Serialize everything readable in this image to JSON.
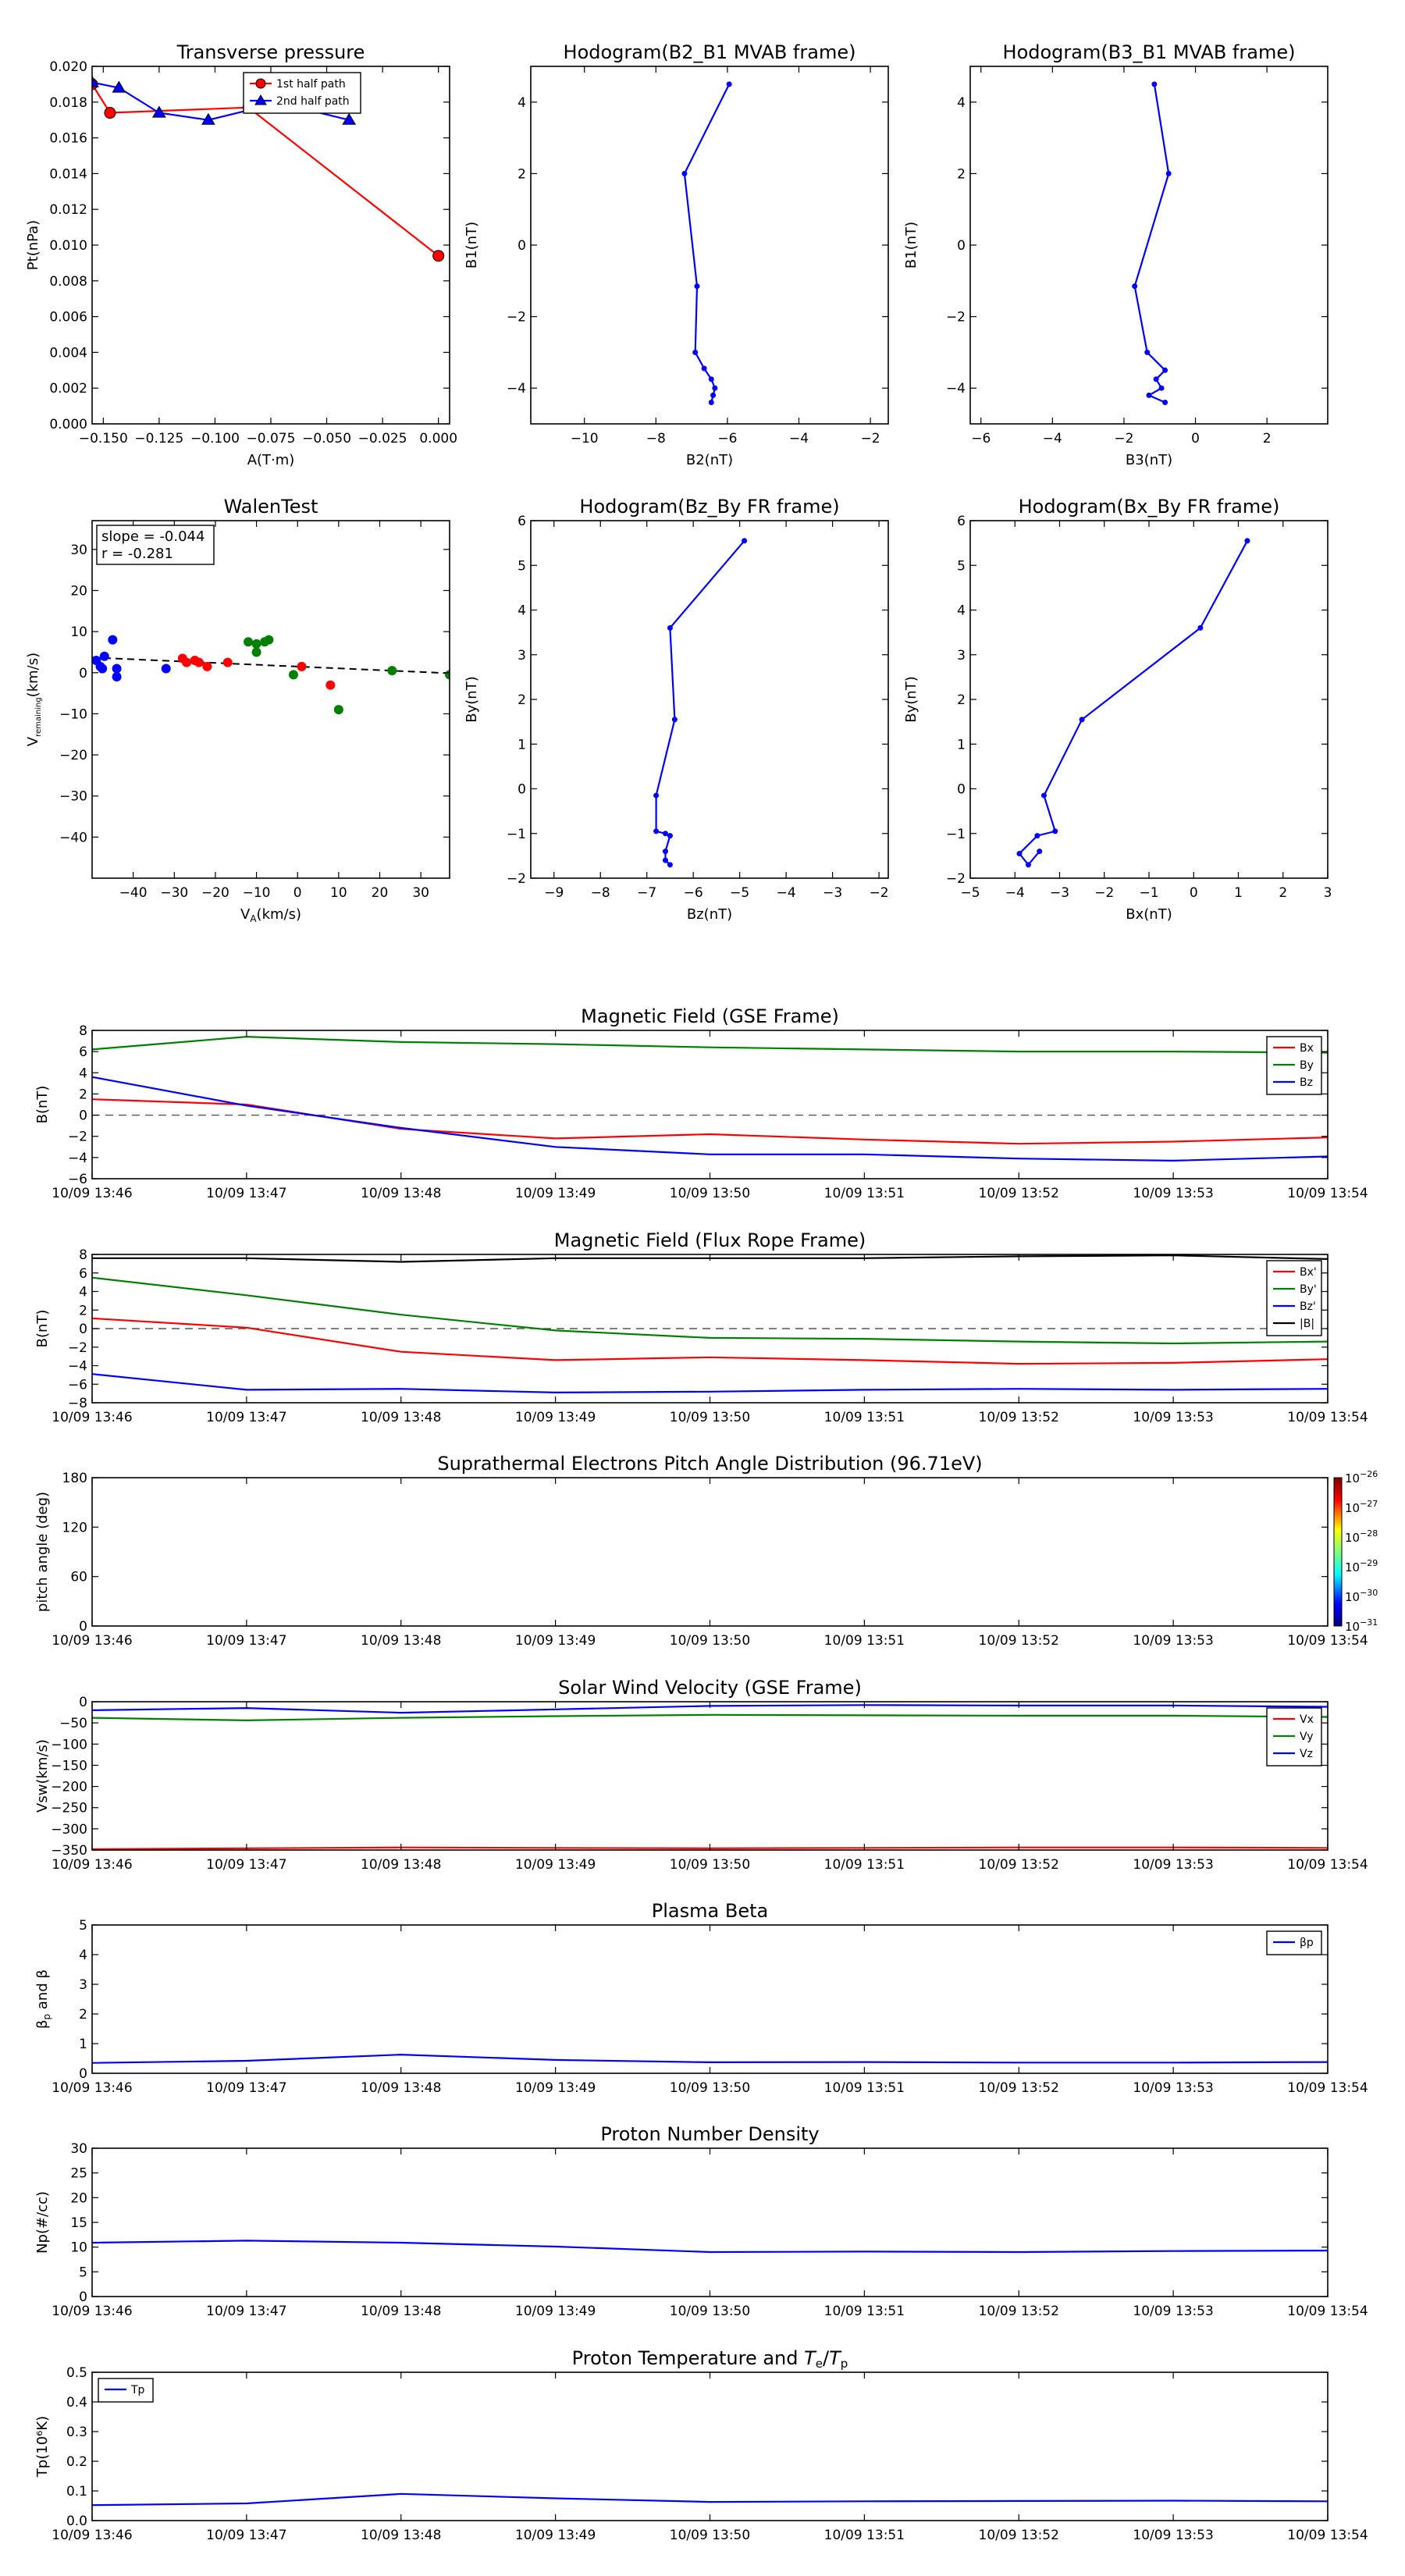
{
  "time_labels": [
    "10/09 13:46",
    "10/09 13:47",
    "10/09 13:48",
    "10/09 13:49",
    "10/09 13:50",
    "10/09 13:51",
    "10/09 13:52",
    "10/09 13:53",
    "10/09 13:54"
  ],
  "colors": {
    "red": "#ff0000",
    "green": "#008000",
    "blue": "#0000ff",
    "black": "#000000"
  },
  "chart_data": [
    {
      "id": "transverse-pressure",
      "type": "line",
      "title": "Transverse pressure",
      "xlabel": "A(T·m)",
      "ylabel": "Pt(nPa)",
      "xlim": [
        -0.155,
        0.005
      ],
      "ylim": [
        0,
        0.02
      ],
      "xticks": [
        -0.15,
        -0.125,
        -0.1,
        -0.075,
        -0.05,
        -0.025,
        0.0
      ],
      "xtick_labels": [
        "−0.150",
        "−0.125",
        "−0.100",
        "−0.075",
        "−0.050",
        "−0.025",
        "0.000"
      ],
      "yticks": [
        0,
        0.002,
        0.004,
        0.006,
        0.008,
        0.01,
        0.012,
        0.014,
        0.016,
        0.018,
        0.02
      ],
      "ytick_labels": [
        "0.000",
        "0.002",
        "0.004",
        "0.006",
        "0.008",
        "0.010",
        "0.012",
        "0.014",
        "0.016",
        "0.018",
        "0.020"
      ],
      "legend": "top-center",
      "series": [
        {
          "name": "1st half path",
          "color": "#ff0000",
          "marker": "circle",
          "x": [
            -0.155,
            -0.147,
            -0.085,
            0.0
          ],
          "y": [
            0.019,
            0.0174,
            0.0177,
            0.0094
          ]
        },
        {
          "name": "2nd half path",
          "color": "#0000ff",
          "marker": "triangle",
          "x": [
            -0.155,
            -0.143,
            -0.125,
            -0.103,
            -0.08,
            -0.063,
            -0.04
          ],
          "y": [
            0.0191,
            0.0188,
            0.0174,
            0.017,
            0.0177,
            0.0177,
            0.017
          ]
        }
      ]
    },
    {
      "id": "hodogram-b2-b1",
      "type": "line",
      "title": "Hodogram(B2_B1 MVAB frame)",
      "xlabel": "B2(nT)",
      "ylabel": "B1(nT)",
      "xlim": [
        -11.5,
        -1.5
      ],
      "ylim": [
        -5,
        5
      ],
      "xticks": [
        -10,
        -8,
        -6,
        -4,
        -2
      ],
      "xtick_labels": [
        "−10",
        "−8",
        "−6",
        "−4",
        "−2"
      ],
      "yticks": [
        -4,
        -2,
        0,
        2,
        4
      ],
      "ytick_labels": [
        "−4",
        "−2",
        "0",
        "2",
        "4"
      ],
      "series": [
        {
          "color": "#0000ff",
          "marker": "dot",
          "x": [
            -5.95,
            -7.2,
            -6.85,
            -6.9,
            -6.65,
            -6.45,
            -6.35,
            -6.4,
            -6.45
          ],
          "y": [
            4.5,
            2.0,
            -1.15,
            -3.0,
            -3.45,
            -3.75,
            -4.0,
            -4.2,
            -4.4
          ]
        }
      ]
    },
    {
      "id": "hodogram-b3-b1",
      "type": "line",
      "title": "Hodogram(B3_B1 MVAB frame)",
      "xlabel": "B3(nT)",
      "ylabel": "B1(nT)",
      "xlim": [
        -6.3,
        3.7
      ],
      "ylim": [
        -5,
        5
      ],
      "xticks": [
        -6,
        -4,
        -2,
        0,
        2
      ],
      "xtick_labels": [
        "−6",
        "−4",
        "−2",
        "0",
        "2"
      ],
      "yticks": [
        -4,
        -2,
        0,
        2,
        4
      ],
      "ytick_labels": [
        "−4",
        "−2",
        "0",
        "2",
        "4"
      ],
      "series": [
        {
          "color": "#0000ff",
          "marker": "dot",
          "x": [
            -1.15,
            -0.75,
            -1.7,
            -1.35,
            -0.85,
            -1.1,
            -0.95,
            -1.3,
            -0.85
          ],
          "y": [
            4.5,
            2.0,
            -1.15,
            -3.0,
            -3.5,
            -3.75,
            -4.0,
            -4.2,
            -4.4
          ]
        }
      ]
    },
    {
      "id": "walen-test",
      "type": "scatter",
      "title": "WalenTest",
      "xlabel": "V_A(km/s)",
      "ylabel": "V_remaining(km/s)",
      "xlim": [
        -50,
        37
      ],
      "ylim": [
        -50,
        37
      ],
      "xticks": [
        -40,
        -30,
        -20,
        -10,
        0,
        10,
        20,
        30
      ],
      "xtick_labels": [
        "−40",
        "−30",
        "−20",
        "−10",
        "0",
        "10",
        "20",
        "30"
      ],
      "yticks": [
        -40,
        -30,
        -20,
        -10,
        0,
        10,
        20,
        30
      ],
      "ytick_labels": [
        "−40",
        "−30",
        "−20",
        "−10",
        "0",
        "10",
        "20",
        "30"
      ],
      "annotation": [
        "slope = -0.044",
        "r = -0.281"
      ],
      "fit": {
        "slope": -0.044,
        "intercept": 1.5,
        "color": "#000000"
      },
      "series": [
        {
          "color": "#0000ff",
          "x": [
            -49,
            -48,
            -47.5,
            -47,
            -45,
            -44,
            -44,
            -32
          ],
          "y": [
            3,
            1.5,
            1,
            4,
            8,
            -1,
            1,
            1
          ]
        },
        {
          "color": "#ff0000",
          "x": [
            -28,
            -27,
            -25,
            -24,
            -22,
            -17,
            1,
            8
          ],
          "y": [
            3.5,
            2.5,
            3,
            2.5,
            1.5,
            2.5,
            1.5,
            -3
          ]
        },
        {
          "color": "#008000",
          "x": [
            -12,
            -10,
            -10,
            -8,
            -7,
            -1,
            10,
            23,
            37
          ],
          "y": [
            7.5,
            7,
            5,
            7.5,
            8,
            -0.5,
            -9,
            0.5,
            -0.5
          ]
        }
      ]
    },
    {
      "id": "hodogram-bz-by",
      "type": "line",
      "title": "Hodogram(Bz_By FR frame)",
      "xlabel": "Bz(nT)",
      "ylabel": "By(nT)",
      "xlim": [
        -9.5,
        -1.8
      ],
      "ylim": [
        -2,
        6
      ],
      "xticks": [
        -9,
        -8,
        -7,
        -6,
        -5,
        -4,
        -3,
        -2
      ],
      "xtick_labels": [
        "−9",
        "−8",
        "−7",
        "−6",
        "−5",
        "−4",
        "−3",
        "−2"
      ],
      "yticks": [
        -2,
        -1,
        0,
        1,
        2,
        3,
        4,
        5,
        6
      ],
      "ytick_labels": [
        "−2",
        "−1",
        "0",
        "1",
        "2",
        "3",
        "4",
        "5",
        "6"
      ],
      "series": [
        {
          "color": "#0000ff",
          "marker": "dot",
          "x": [
            -4.9,
            -6.5,
            -6.4,
            -6.8,
            -6.8,
            -6.6,
            -6.5,
            -6.6,
            -6.6,
            -6.5
          ],
          "y": [
            5.55,
            3.6,
            1.55,
            -0.15,
            -0.95,
            -1.0,
            -1.05,
            -1.4,
            -1.6,
            -1.7
          ]
        }
      ]
    },
    {
      "id": "hodogram-bx-by",
      "type": "line",
      "title": "Hodogram(Bx_By FR frame)",
      "xlabel": "Bx(nT)",
      "ylabel": "By(nT)",
      "xlim": [
        -5,
        3
      ],
      "ylim": [
        -2,
        6
      ],
      "xticks": [
        -5,
        -4,
        -3,
        -2,
        -1,
        0,
        1,
        2,
        3
      ],
      "xtick_labels": [
        "−5",
        "−4",
        "−3",
        "−2",
        "−1",
        "0",
        "1",
        "2",
        "3"
      ],
      "yticks": [
        -2,
        -1,
        0,
        1,
        2,
        3,
        4,
        5,
        6
      ],
      "ytick_labels": [
        "−2",
        "−1",
        "0",
        "1",
        "2",
        "3",
        "4",
        "5",
        "6"
      ],
      "series": [
        {
          "color": "#0000ff",
          "marker": "dot",
          "x": [
            1.2,
            0.15,
            -2.5,
            -3.35,
            -3.1,
            -3.5,
            -3.9,
            -3.7,
            -3.45
          ],
          "y": [
            5.55,
            3.6,
            1.55,
            -0.15,
            -0.95,
            -1.05,
            -1.45,
            -1.7,
            -1.4
          ]
        }
      ]
    },
    {
      "id": "magnetic-field-gse",
      "type": "line",
      "title": "Magnetic Field (GSE Frame)",
      "xlabel": "",
      "ylabel": "B(nT)",
      "xlim": [
        0,
        8
      ],
      "ylim": [
        -6,
        8
      ],
      "yticks": [
        -6,
        -4,
        -2,
        0,
        2,
        4,
        6,
        8
      ],
      "ytick_labels": [
        "−6",
        "−4",
        "−2",
        "0",
        "2",
        "4",
        "6",
        "8"
      ],
      "show_time_labels": true,
      "zero_line": true,
      "legend": "top-right",
      "series": [
        {
          "name": "Bx",
          "color": "#ff0000",
          "x": [
            0,
            1,
            2,
            3,
            4,
            5,
            6,
            7,
            8
          ],
          "y": [
            1.5,
            1.0,
            -1.3,
            -2.2,
            -1.8,
            -2.3,
            -2.7,
            -2.5,
            -2.1
          ]
        },
        {
          "name": "By",
          "color": "#008000",
          "x": [
            0,
            1,
            2,
            3,
            4,
            5,
            6,
            7,
            8
          ],
          "y": [
            6.2,
            7.4,
            6.9,
            6.7,
            6.4,
            6.2,
            6.0,
            6.0,
            5.9
          ]
        },
        {
          "name": "Bz",
          "color": "#0000ff",
          "x": [
            0,
            1,
            2,
            3,
            4,
            5,
            6,
            7,
            8
          ],
          "y": [
            3.6,
            0.9,
            -1.2,
            -3.0,
            -3.7,
            -3.7,
            -4.1,
            -4.3,
            -3.9
          ]
        }
      ]
    },
    {
      "id": "magnetic-field-fr",
      "type": "line",
      "title": "Magnetic Field (Flux Rope Frame)",
      "xlabel": "",
      "ylabel": "B(nT)",
      "xlim": [
        0,
        8
      ],
      "ylim": [
        -8,
        8
      ],
      "yticks": [
        -8,
        -6,
        -4,
        -2,
        0,
        2,
        4,
        6,
        8
      ],
      "ytick_labels": [
        "−8",
        "−6",
        "−4",
        "−2",
        "0",
        "2",
        "4",
        "6",
        "8"
      ],
      "show_time_labels": true,
      "zero_line": true,
      "legend": "top-right",
      "series": [
        {
          "name": "Bx'",
          "color": "#ff0000",
          "x": [
            0,
            1,
            2,
            3,
            4,
            5,
            6,
            7,
            8
          ],
          "y": [
            1.1,
            0.1,
            -2.5,
            -3.4,
            -3.1,
            -3.4,
            -3.8,
            -3.7,
            -3.3
          ]
        },
        {
          "name": "By'",
          "color": "#008000",
          "x": [
            0,
            1,
            2,
            3,
            4,
            5,
            6,
            7,
            8
          ],
          "y": [
            5.5,
            3.6,
            1.5,
            -0.2,
            -1.0,
            -1.1,
            -1.4,
            -1.6,
            -1.4
          ]
        },
        {
          "name": "Bz'",
          "color": "#0000ff",
          "x": [
            0,
            1,
            2,
            3,
            4,
            5,
            6,
            7,
            8
          ],
          "y": [
            -4.9,
            -6.6,
            -6.5,
            -6.9,
            -6.8,
            -6.6,
            -6.5,
            -6.6,
            -6.5
          ]
        },
        {
          "name": "|B|",
          "color": "#000000",
          "x": [
            0,
            1,
            2,
            3,
            4,
            5,
            6,
            7,
            8
          ],
          "y": [
            7.6,
            7.6,
            7.2,
            7.6,
            7.6,
            7.6,
            7.8,
            7.9,
            7.5
          ]
        }
      ]
    },
    {
      "id": "pitch-angle-distribution",
      "type": "heatmap",
      "title": "Suprathermal Electrons Pitch Angle Distribution (96.71eV)",
      "xlabel": "",
      "ylabel": "pitch angle (deg)",
      "xlim": [
        0,
        8
      ],
      "ylim": [
        0,
        180
      ],
      "yticks": [
        0,
        60,
        120,
        180
      ],
      "ytick_labels": [
        "0",
        "60",
        "120",
        "180"
      ],
      "show_time_labels": true,
      "colorbar": {
        "ticks": [
          -26,
          -27,
          -28,
          -29,
          -30,
          -31
        ],
        "labels": [
          "10",
          "10",
          "10",
          "10",
          "10",
          "10"
        ],
        "exponents": [
          "−26",
          "−27",
          "−28",
          "−29",
          "−30",
          "−31"
        ]
      }
    },
    {
      "id": "solar-wind-velocity",
      "type": "line",
      "title": "Solar Wind Velocity (GSE Frame)",
      "xlabel": "",
      "ylabel": "Vsw(km/s)",
      "xlim": [
        0,
        8
      ],
      "ylim": [
        -350,
        0
      ],
      "yticks": [
        -350,
        -300,
        -250,
        -200,
        -150,
        -100,
        -50,
        0
      ],
      "ytick_labels": [
        "−350",
        "−300",
        "−250",
        "−200",
        "−150",
        "−100",
        "−50",
        "0"
      ],
      "show_time_labels": true,
      "legend": "top-right",
      "series": [
        {
          "name": "Vx",
          "color": "#ff0000",
          "x": [
            0,
            1,
            2,
            3,
            4,
            5,
            6,
            7,
            8
          ],
          "y": [
            -348,
            -346,
            -344,
            -345,
            -346,
            -345,
            -344,
            -344,
            -345
          ]
        },
        {
          "name": "Vy",
          "color": "#008000",
          "x": [
            0,
            1,
            2,
            3,
            4,
            5,
            6,
            7,
            8
          ],
          "y": [
            -38,
            -44,
            -38,
            -34,
            -31,
            -32,
            -33,
            -33,
            -36
          ]
        },
        {
          "name": "Vz",
          "color": "#0000ff",
          "x": [
            0,
            1,
            2,
            3,
            4,
            5,
            6,
            7,
            8
          ],
          "y": [
            -20,
            -15,
            -26,
            -18,
            -10,
            -8,
            -9,
            -9,
            -12
          ]
        }
      ]
    },
    {
      "id": "plasma-beta",
      "type": "line",
      "title": "Plasma Beta",
      "xlabel": "",
      "ylabel": "βp and β",
      "xlim": [
        0,
        8
      ],
      "ylim": [
        0,
        5
      ],
      "yticks": [
        0,
        1,
        2,
        3,
        4,
        5
      ],
      "ytick_labels": [
        "0",
        "1",
        "2",
        "3",
        "4",
        "5"
      ],
      "show_time_labels": true,
      "legend": "top-right",
      "series": [
        {
          "name": "βp",
          "color": "#0000ff",
          "x": [
            0,
            1,
            2,
            3,
            4,
            5,
            6,
            7,
            8
          ],
          "y": [
            0.35,
            0.42,
            0.63,
            0.45,
            0.37,
            0.38,
            0.36,
            0.36,
            0.38
          ]
        }
      ]
    },
    {
      "id": "proton-number-density",
      "type": "line",
      "title": "Proton Number Density",
      "xlabel": "",
      "ylabel": "Np(#/cc)",
      "xlim": [
        0,
        8
      ],
      "ylim": [
        0,
        30
      ],
      "yticks": [
        0,
        5,
        10,
        15,
        20,
        25,
        30
      ],
      "ytick_labels": [
        "0",
        "5",
        "10",
        "15",
        "20",
        "25",
        "30"
      ],
      "show_time_labels": true,
      "series": [
        {
          "color": "#0000ff",
          "x": [
            0,
            1,
            2,
            3,
            4,
            5,
            6,
            7,
            8
          ],
          "y": [
            10.9,
            11.3,
            10.9,
            10.1,
            9.0,
            9.1,
            9.0,
            9.2,
            9.3
          ]
        }
      ]
    },
    {
      "id": "proton-temperature",
      "type": "line",
      "title": "Proton Temperature and Te/Tp",
      "xlabel": "",
      "ylabel": "Tp(10⁶K)",
      "xlim": [
        0,
        8
      ],
      "ylim": [
        0,
        0.5
      ],
      "yticks": [
        0,
        0.1,
        0.2,
        0.3,
        0.4,
        0.5
      ],
      "ytick_labels": [
        "0.0",
        "0.1",
        "0.2",
        "0.3",
        "0.4",
        "0.5"
      ],
      "show_time_labels": true,
      "legend": "top-left",
      "series": [
        {
          "name": "Tp",
          "color": "#0000ff",
          "x": [
            0,
            1,
            2,
            3,
            4,
            5,
            6,
            7,
            8
          ],
          "y": [
            0.052,
            0.058,
            0.09,
            0.075,
            0.063,
            0.065,
            0.066,
            0.067,
            0.065
          ]
        }
      ]
    }
  ]
}
